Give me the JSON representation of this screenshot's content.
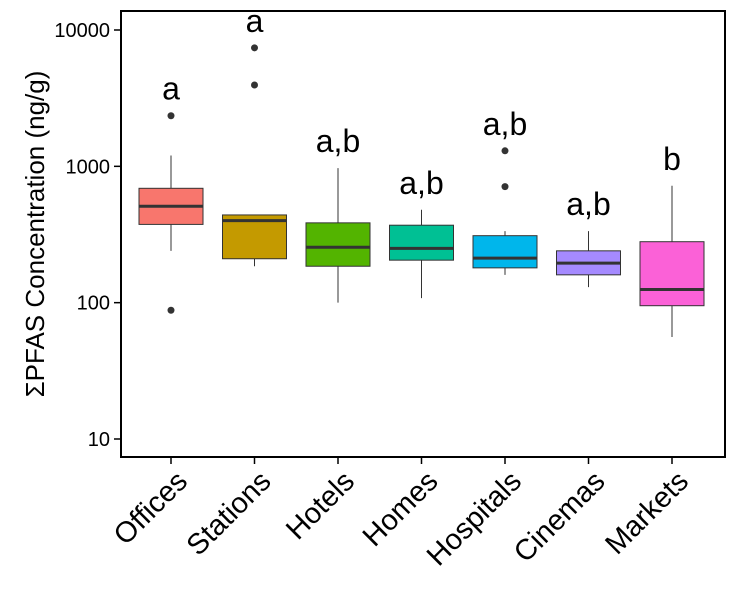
{
  "chart_data": {
    "type": "boxplot",
    "ylabel": "ΣPFAS Concentration (ng/g)",
    "y_scale": "log10",
    "ylim": [
      7,
      14000
    ],
    "y_ticks": [
      10,
      100,
      1000,
      10000
    ],
    "y_tick_labels": [
      "10",
      "100",
      "1000",
      "10000"
    ],
    "grid": false,
    "categories": [
      "Offices",
      "Stations",
      "Hotels",
      "Homes",
      "Hospitals",
      "Cinemas",
      "Markets"
    ],
    "boxes": [
      {
        "category": "Offices",
        "whisker_low": 240,
        "q1": 375,
        "median": 510,
        "q3": 690,
        "whisker_high": 1200,
        "outliers": [
          2350,
          88
        ],
        "color": "#F8766D",
        "significance": "a"
      },
      {
        "category": "Stations",
        "whisker_low": 185,
        "q1": 210,
        "median": 400,
        "q3": 440,
        "whisker_high": 440,
        "outliers": [
          7400,
          3950
        ],
        "color": "#C49A00",
        "significance": "a"
      },
      {
        "category": "Hotels",
        "whisker_low": 100,
        "q1": 185,
        "median": 255,
        "q3": 385,
        "whisker_high": 970,
        "outliers": [],
        "color": "#53B400",
        "significance": "a,b"
      },
      {
        "category": "Homes",
        "whisker_low": 108,
        "q1": 205,
        "median": 250,
        "q3": 370,
        "whisker_high": 480,
        "outliers": [],
        "color": "#00C094",
        "significance": "a,b"
      },
      {
        "category": "Hospitals",
        "whisker_low": 160,
        "q1": 180,
        "median": 212,
        "q3": 310,
        "whisker_high": 335,
        "outliers": [
          1300,
          710
        ],
        "color": "#00B6EB",
        "significance": "a,b"
      },
      {
        "category": "Cinemas",
        "whisker_low": 130,
        "q1": 160,
        "median": 195,
        "q3": 240,
        "whisker_high": 335,
        "outliers": [],
        "color": "#A58AFF",
        "significance": "a,b"
      },
      {
        "category": "Markets",
        "whisker_low": 56,
        "q1": 95,
        "median": 125,
        "q3": 280,
        "whisker_high": 720,
        "outliers": [],
        "color": "#FB61D7",
        "significance": "b"
      }
    ]
  }
}
